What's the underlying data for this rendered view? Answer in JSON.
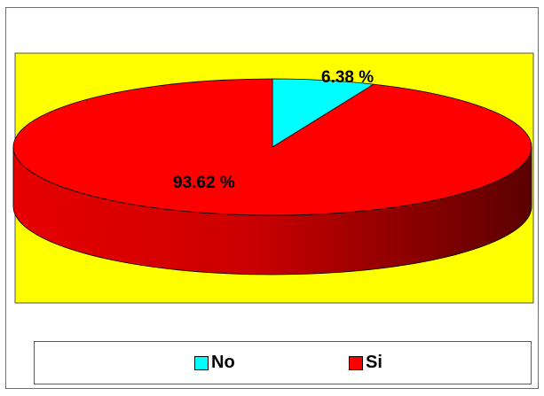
{
  "chart_data": {
    "type": "pie",
    "title": "",
    "categories": [
      "No",
      "Si"
    ],
    "values": [
      6.38,
      93.62
    ],
    "data_labels": [
      "6.38 %",
      "93.62 %"
    ],
    "colors": [
      "#00ffff",
      "#ff0000"
    ],
    "plot_area_background": "#ffff00",
    "three_d": true,
    "legend": {
      "position": "bottom",
      "entries": [
        "No",
        "Si"
      ]
    }
  }
}
